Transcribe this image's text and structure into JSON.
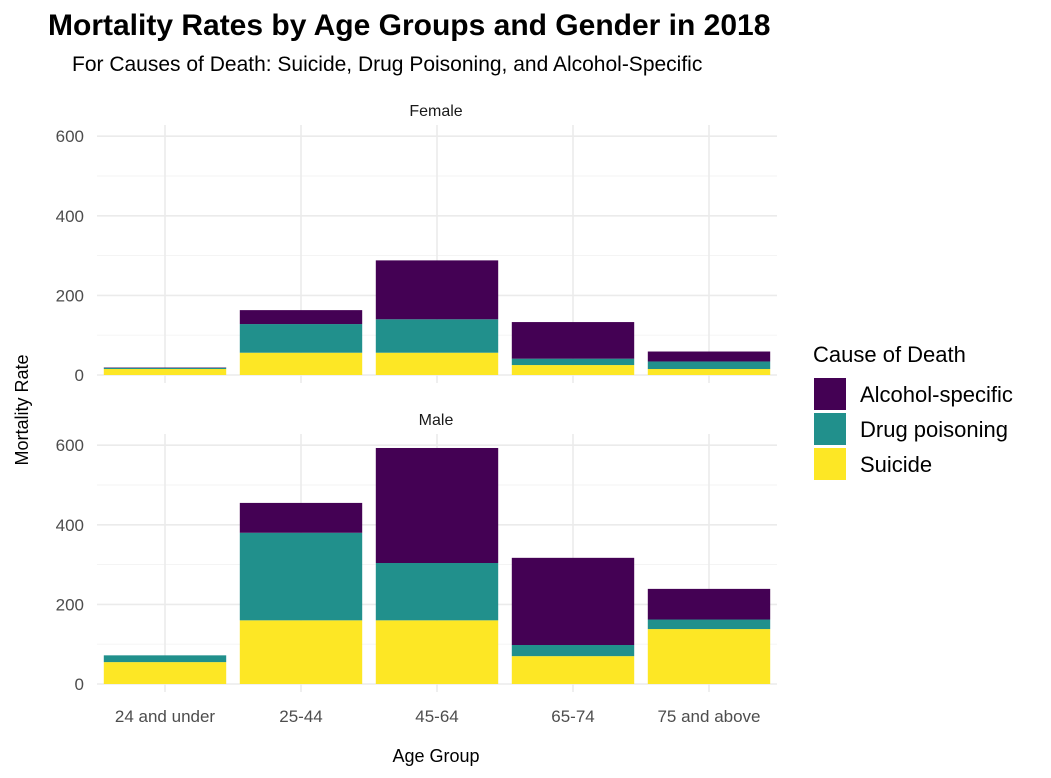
{
  "chart_data": {
    "type": "bar",
    "stacked": true,
    "title": "Mortality Rates by Age Groups and Gender in 2018",
    "subtitle": "For Causes of Death: Suicide, Drug Poisoning, and Alcohol-Specific",
    "xlabel": "Age Group",
    "ylabel": "Mortality Rate",
    "ylim": [
      0,
      620
    ],
    "yticks": [
      "0",
      "200",
      "400",
      "600"
    ],
    "categories": [
      "24 and under",
      "25-44",
      "45-64",
      "65-74",
      "75 and above"
    ],
    "legend": {
      "title": "Cause of Death",
      "position": "right",
      "entries": [
        {
          "name": "Alcohol-specific",
          "color": "#440154"
        },
        {
          "name": "Drug poisoning",
          "color": "#21908C"
        },
        {
          "name": "Suicide",
          "color": "#FDE725"
        }
      ]
    },
    "grid": true,
    "panels": [
      {
        "label": "Female",
        "series": [
          {
            "name": "Suicide",
            "values": [
              15,
              56,
              56,
              25,
              15
            ]
          },
          {
            "name": "Drug poisoning",
            "values": [
              3,
              72,
              84,
              16,
              19
            ]
          },
          {
            "name": "Alcohol-specific",
            "values": [
              1,
              35,
              148,
              92,
              25
            ]
          }
        ]
      },
      {
        "label": "Male",
        "series": [
          {
            "name": "Suicide",
            "values": [
              55,
              160,
              160,
              70,
              138
            ]
          },
          {
            "name": "Drug poisoning",
            "values": [
              17,
              220,
              144,
              28,
              24
            ]
          },
          {
            "name": "Alcohol-specific",
            "values": [
              0,
              75,
              289,
              219,
              77
            ]
          }
        ]
      }
    ]
  }
}
